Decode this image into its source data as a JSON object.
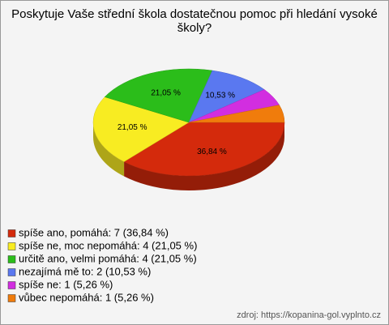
{
  "chart_data": {
    "type": "pie",
    "title": "Poskytuje Vaše střední škola dostatečnou pomoc při hledání vysoké školy?",
    "categories": [
      "spíše ano, pomáhá: 7 (36,84 %)",
      "spíše ne, moc nepomáhá: 4 (21,05 %)",
      "určitě ano, velmi pomáhá: 4 (21,05 %)",
      "nezajímá mě to: 2 (10,53 %)",
      "spíše ne: 1 (5,26 %)",
      "vůbec nepomáhá: 1 (5,26 %)"
    ],
    "values": [
      36.84,
      21.05,
      21.05,
      10.53,
      5.26,
      5.26
    ],
    "value_labels": [
      "36,84 %",
      "21,05 %",
      "21,05 %",
      "10,53 %",
      null,
      null
    ],
    "colors": [
      "#d42a0c",
      "#f8ec22",
      "#2bbd1a",
      "#5a78f0",
      "#d22ee0",
      "#f07c0c"
    ],
    "source": "zdroj: https://kopanina-gol.vyplnto.cz"
  }
}
